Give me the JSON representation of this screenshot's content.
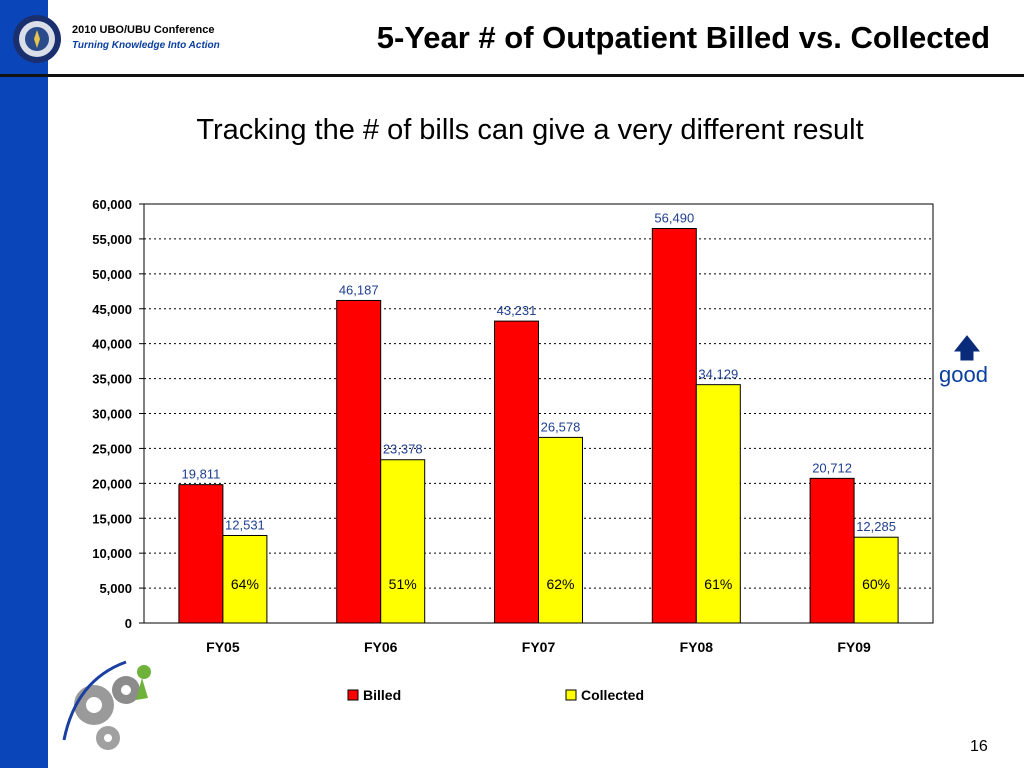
{
  "header": {
    "conference_name": "2010 UBO/UBU Conference",
    "conference_tagline": "Turning Knowledge Into Action",
    "page_title": "5-Year # of Outpatient Billed vs. Collected"
  },
  "subtitle": "Tracking the # of bills can give a very different result",
  "annotation": {
    "arrow_icon": "up-arrow-icon",
    "label": "good"
  },
  "footer": {
    "page_number": "16"
  },
  "colors": {
    "billed": "#ff0000",
    "collected": "#ffff00",
    "left_bar": "#0a46b9"
  },
  "chart_data": {
    "type": "bar",
    "categories": [
      "FY05",
      "FY06",
      "FY07",
      "FY08",
      "FY09"
    ],
    "series": [
      {
        "name": "Billed",
        "values": [
          19811,
          46187,
          43231,
          56490,
          20712
        ],
        "labels": [
          "19,811",
          "46,187",
          "43,231",
          "56,490",
          "20,712"
        ]
      },
      {
        "name": "Collected",
        "values": [
          12531,
          23378,
          26578,
          34129,
          12285
        ],
        "labels": [
          "12,531",
          "23,378",
          "26,578",
          "34,129",
          "12,285"
        ]
      }
    ],
    "percent_labels": [
      "64%",
      "51%",
      "62%",
      "61%",
      "60%"
    ],
    "ylim": [
      0,
      60000
    ],
    "yticks": [
      "0",
      "5,000",
      "10,000",
      "15,000",
      "20,000",
      "25,000",
      "30,000",
      "35,000",
      "40,000",
      "45,000",
      "50,000",
      "55,000",
      "60,000"
    ],
    "grid": true,
    "legend_position": "bottom",
    "xlabel": "",
    "ylabel": ""
  }
}
